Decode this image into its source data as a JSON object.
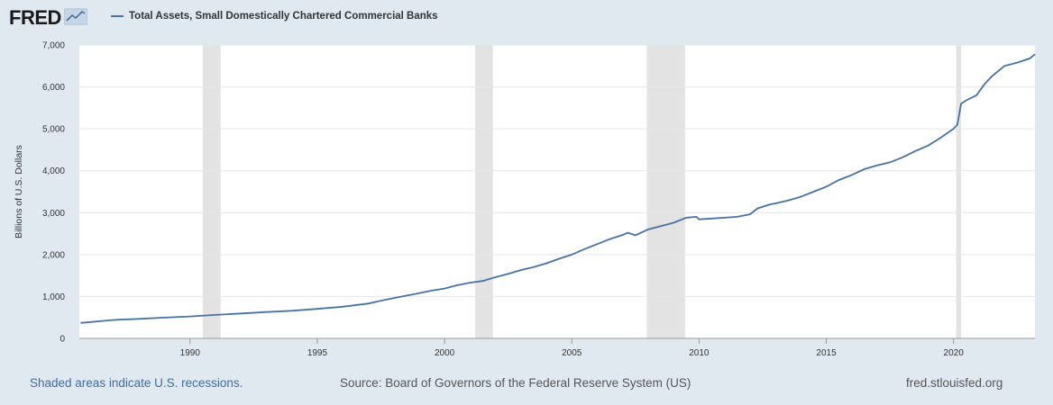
{
  "header": {
    "logo_text": "FRED",
    "logo_icon": "chart-trend-icon"
  },
  "legend": {
    "series_label": "Total Assets, Small Domestically Chartered Commercial Banks",
    "color": "#4572a7"
  },
  "footer": {
    "recession_note": "Shaded areas indicate U.S. recessions.",
    "source": "Source: Board of Governors of the Federal Reserve System (US)",
    "site": "fred.stlouisfed.org"
  },
  "chart_data": {
    "type": "line",
    "title": "",
    "xlabel": "",
    "ylabel": "Billions of U.S. Dollars",
    "xlim": [
      1985.65,
      2023.2
    ],
    "ylim": [
      0,
      7000
    ],
    "x_ticks": [
      1990,
      1995,
      2000,
      2005,
      2010,
      2015,
      2020
    ],
    "x_tick_labels": [
      "1990",
      "1995",
      "2000",
      "2005",
      "2010",
      "2015",
      "2020"
    ],
    "y_ticks": [
      0,
      1000,
      2000,
      3000,
      4000,
      5000,
      6000,
      7000
    ],
    "y_tick_labels": [
      "0",
      "1,000",
      "2,000",
      "3,000",
      "4,000",
      "5,000",
      "6,000",
      "7,000"
    ],
    "grid": true,
    "legend_position": "top-left",
    "recessions": [
      [
        1990.5,
        1991.2
      ],
      [
        2001.2,
        2001.9
      ],
      [
        2007.95,
        2009.45
      ],
      [
        2020.1,
        2020.3
      ]
    ],
    "series": [
      {
        "name": "Total Assets, Small Domestically Chartered Commercial Banks",
        "color": "#4572a7",
        "x": [
          1985.7,
          1987,
          1988,
          1989,
          1990,
          1991,
          1992,
          1993,
          1994,
          1995,
          1996,
          1997,
          1997.5,
          1998,
          1998.5,
          1999,
          1999.5,
          2000,
          2000.5,
          2001,
          2001.5,
          2002,
          2002.5,
          2003,
          2003.5,
          2004,
          2004.5,
          2005,
          2005.5,
          2006,
          2006.5,
          2007,
          2007.2,
          2007.5,
          2008,
          2008.5,
          2009,
          2009.5,
          2009.9,
          2010,
          2010.5,
          2011,
          2011.5,
          2012,
          2012.3,
          2012.8,
          2013,
          2013.5,
          2014,
          2014.5,
          2015,
          2015.5,
          2016,
          2016.5,
          2017,
          2017.5,
          2018,
          2018.5,
          2019,
          2019.5,
          2020,
          2020.15,
          2020.3,
          2020.5,
          2020.9,
          2021.2,
          2021.5,
          2022,
          2022.5,
          2023,
          2023.2
        ],
        "y": [
          370,
          440,
          465,
          495,
          525,
          560,
          595,
          630,
          660,
          705,
          755,
          830,
          900,
          960,
          1020,
          1080,
          1140,
          1190,
          1270,
          1330,
          1370,
          1460,
          1540,
          1630,
          1700,
          1790,
          1900,
          2000,
          2130,
          2250,
          2370,
          2470,
          2520,
          2460,
          2600,
          2680,
          2760,
          2880,
          2900,
          2840,
          2860,
          2880,
          2900,
          2960,
          3100,
          3200,
          3220,
          3290,
          3380,
          3500,
          3620,
          3780,
          3900,
          4040,
          4130,
          4200,
          4320,
          4470,
          4600,
          4790,
          5000,
          5100,
          5600,
          5680,
          5800,
          6050,
          6250,
          6500,
          6580,
          6680,
          6780
        ]
      }
    ]
  }
}
